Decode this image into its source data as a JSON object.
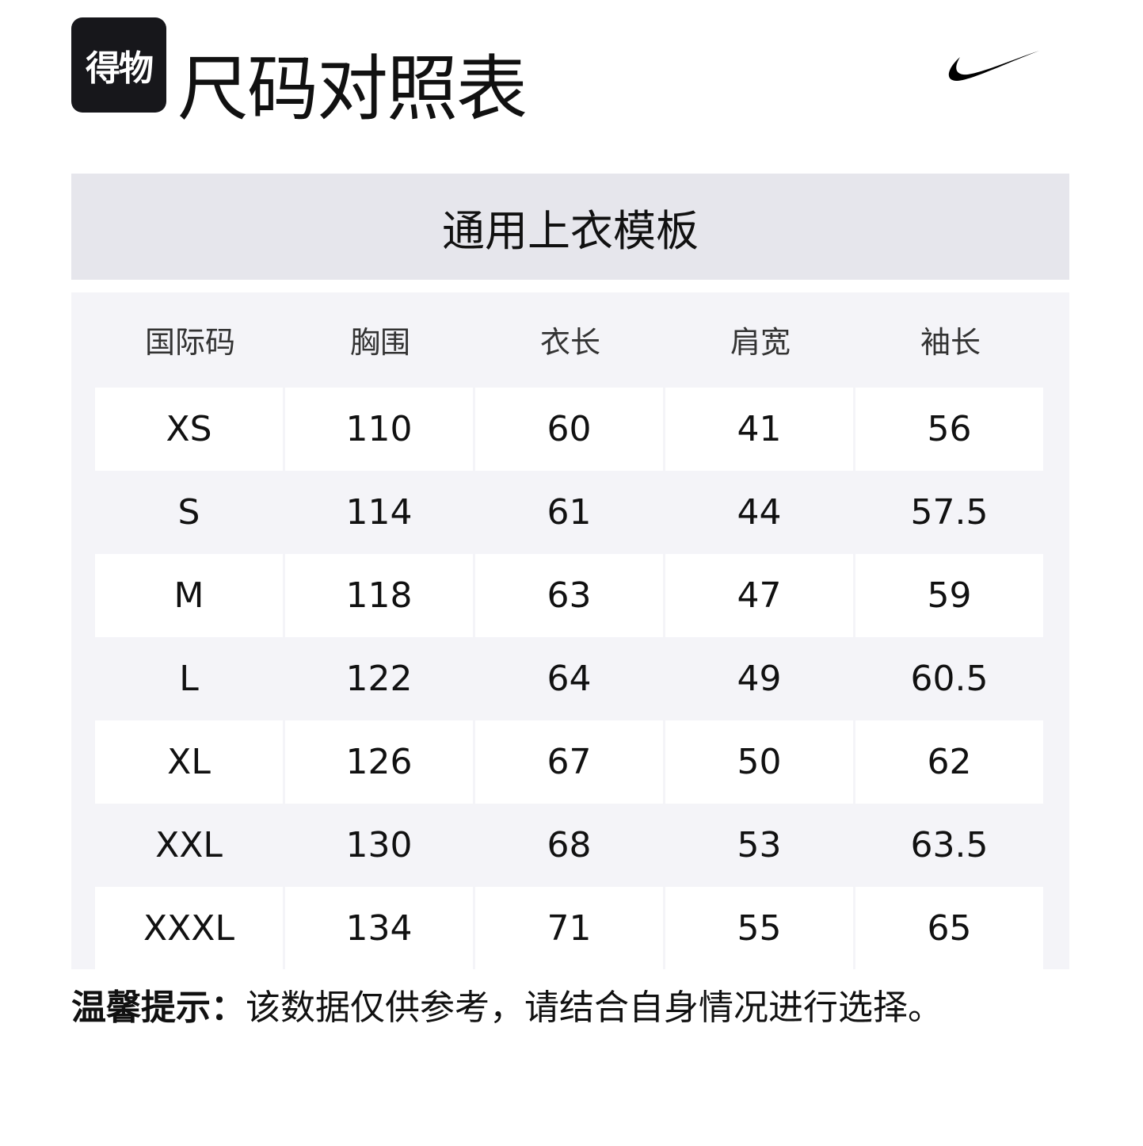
{
  "logo": {
    "text": "得物"
  },
  "title": "尺码对照表",
  "brand_logo": "nike-swoosh",
  "template_title": "通用上衣模板",
  "table": {
    "headers": [
      "国际码",
      "胸围",
      "衣长",
      "肩宽",
      "袖长"
    ],
    "rows": [
      [
        "XS",
        "110",
        "60",
        "41",
        "56"
      ],
      [
        "S",
        "114",
        "61",
        "44",
        "57.5"
      ],
      [
        "M",
        "118",
        "63",
        "47",
        "59"
      ],
      [
        "L",
        "122",
        "64",
        "49",
        "60.5"
      ],
      [
        "XL",
        "126",
        "67",
        "50",
        "62"
      ],
      [
        "XXL",
        "130",
        "68",
        "53",
        "63.5"
      ],
      [
        "XXXL",
        "134",
        "71",
        "55",
        "65"
      ]
    ]
  },
  "note": {
    "label": "温馨提示：",
    "text": "该数据仅供参考，请结合自身情况进行选择。"
  }
}
